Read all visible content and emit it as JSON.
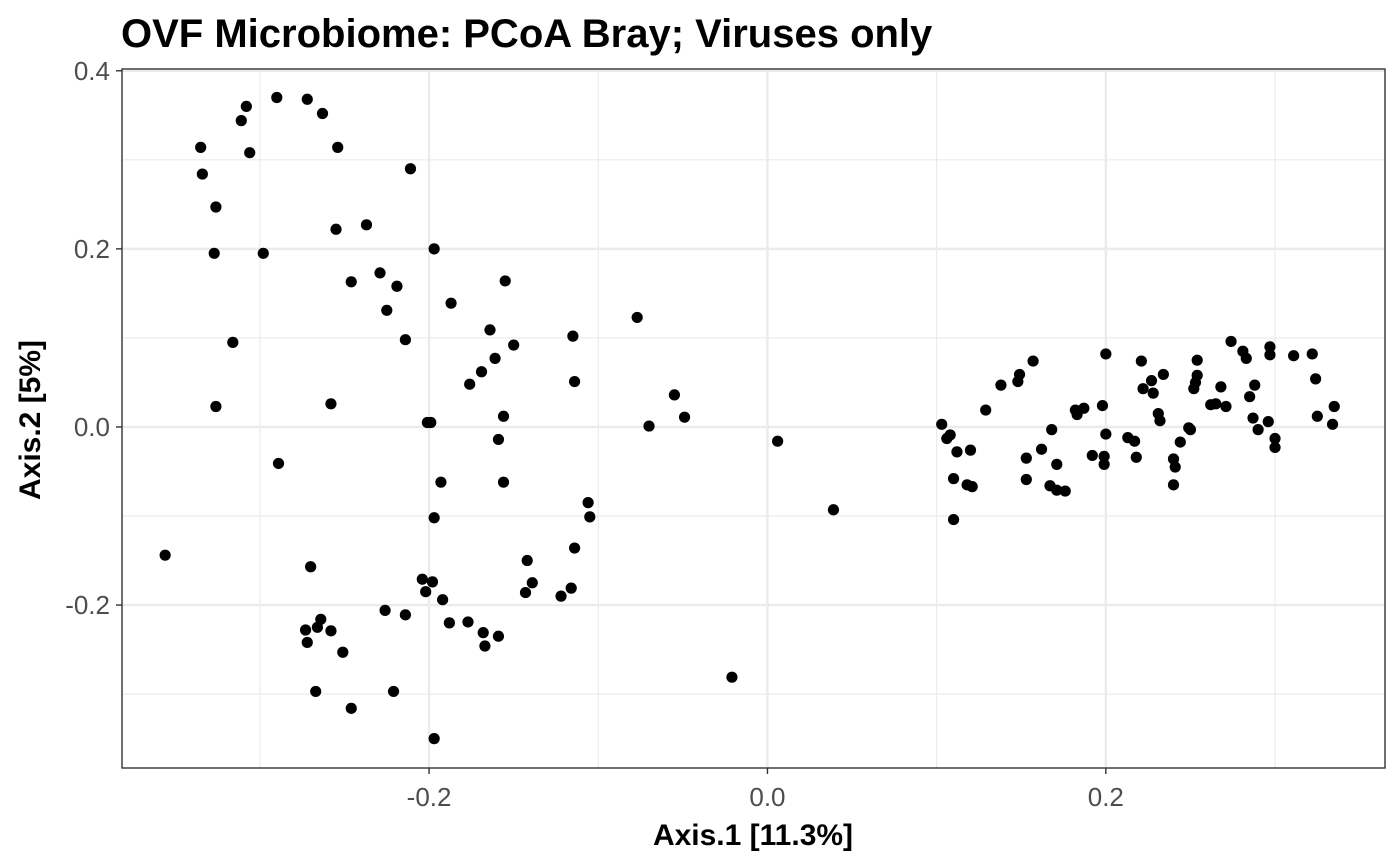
{
  "chart_data": {
    "type": "scatter",
    "title": "OVF Microbiome: PCoA Bray; Viruses only",
    "xlabel": "Axis.1   [11.3%]",
    "ylabel": "Axis.2   [5%]",
    "xlim": [
      -0.3815,
      0.365
    ],
    "ylim": [
      -0.383,
      0.402
    ],
    "xticks": [
      -0.2,
      0.0,
      0.2
    ],
    "xtick_labels": [
      "-0.2",
      "0.0",
      "0.2"
    ],
    "yticks": [
      -0.2,
      0.0,
      0.2,
      0.4
    ],
    "ytick_labels": [
      "-0.2",
      "0.0",
      "0.2",
      "0.4"
    ],
    "x_minor_grid": [
      -0.3,
      -0.1,
      0.1,
      0.3
    ],
    "y_minor_grid": [
      -0.3,
      -0.1,
      0.1,
      0.3
    ],
    "grid": true,
    "point_color": "#000000",
    "gridline_color": "#ebebeb",
    "series": [
      {
        "points": [
          [
            -0.29,
            0.37
          ],
          [
            -0.272,
            0.368
          ],
          [
            -0.263,
            0.352
          ],
          [
            -0.308,
            0.36
          ],
          [
            -0.311,
            0.344
          ],
          [
            -0.335,
            0.314
          ],
          [
            -0.306,
            0.308
          ],
          [
            -0.254,
            0.314
          ],
          [
            -0.334,
            0.284
          ],
          [
            -0.326,
            0.247
          ],
          [
            -0.211,
            0.29
          ],
          [
            -0.237,
            0.227
          ],
          [
            -0.255,
            0.222
          ],
          [
            -0.298,
            0.195
          ],
          [
            -0.327,
            0.195
          ],
          [
            -0.197,
            0.2
          ],
          [
            -0.229,
            0.173
          ],
          [
            -0.246,
            0.163
          ],
          [
            -0.219,
            0.158
          ],
          [
            -0.155,
            0.164
          ],
          [
            -0.187,
            0.139
          ],
          [
            -0.225,
            0.131
          ],
          [
            -0.214,
            0.098
          ],
          [
            -0.316,
            0.095
          ],
          [
            -0.164,
            0.109
          ],
          [
            -0.115,
            0.102
          ],
          [
            -0.15,
            0.092
          ],
          [
            -0.077,
            0.123
          ],
          [
            -0.161,
            0.077
          ],
          [
            -0.169,
            0.062
          ],
          [
            -0.176,
            0.048
          ],
          [
            -0.114,
            0.051
          ],
          [
            -0.326,
            0.023
          ],
          [
            -0.258,
            0.026
          ],
          [
            -0.055,
            0.036
          ],
          [
            -0.156,
            0.012
          ],
          [
            -0.049,
            0.011
          ],
          [
            -0.201,
            0.005
          ],
          [
            -0.199,
            0.005
          ],
          [
            -0.07,
            0.001
          ],
          [
            -0.159,
            -0.014
          ],
          [
            0.006,
            -0.016
          ],
          [
            -0.289,
            -0.041
          ],
          [
            -0.193,
            -0.062
          ],
          [
            -0.156,
            -0.062
          ],
          [
            -0.106,
            -0.085
          ],
          [
            -0.105,
            -0.101
          ],
          [
            -0.197,
            -0.102
          ],
          [
            0.039,
            -0.093
          ],
          [
            -0.114,
            -0.136
          ],
          [
            -0.356,
            -0.144
          ],
          [
            -0.142,
            -0.15
          ],
          [
            -0.27,
            -0.157
          ],
          [
            -0.204,
            -0.171
          ],
          [
            -0.198,
            -0.174
          ],
          [
            -0.139,
            -0.175
          ],
          [
            -0.116,
            -0.181
          ],
          [
            -0.202,
            -0.185
          ],
          [
            -0.143,
            -0.186
          ],
          [
            -0.122,
            -0.19
          ],
          [
            -0.192,
            -0.194
          ],
          [
            -0.226,
            -0.206
          ],
          [
            -0.214,
            -0.211
          ],
          [
            -0.188,
            -0.22
          ],
          [
            -0.177,
            -0.219
          ],
          [
            -0.264,
            -0.216
          ],
          [
            -0.168,
            -0.231
          ],
          [
            -0.159,
            -0.235
          ],
          [
            -0.266,
            -0.225
          ],
          [
            -0.258,
            -0.229
          ],
          [
            -0.273,
            -0.228
          ],
          [
            -0.272,
            -0.242
          ],
          [
            -0.167,
            -0.246
          ],
          [
            -0.251,
            -0.253
          ],
          [
            -0.021,
            -0.281
          ],
          [
            -0.267,
            -0.297
          ],
          [
            -0.221,
            -0.297
          ],
          [
            -0.246,
            -0.316
          ],
          [
            -0.197,
            -0.35
          ],
          [
            0.103,
            0.003
          ],
          [
            0.108,
            -0.009
          ],
          [
            0.106,
            -0.013
          ],
          [
            0.112,
            -0.028
          ],
          [
            0.12,
            -0.026
          ],
          [
            0.11,
            -0.058
          ],
          [
            0.118,
            -0.065
          ],
          [
            0.121,
            -0.067
          ],
          [
            0.11,
            -0.104
          ],
          [
            0.129,
            0.019
          ],
          [
            0.138,
            0.047
          ],
          [
            0.148,
            0.051
          ],
          [
            0.149,
            0.059
          ],
          [
            0.157,
            0.074
          ],
          [
            0.153,
            -0.035
          ],
          [
            0.153,
            -0.059
          ],
          [
            0.162,
            -0.025
          ],
          [
            0.168,
            -0.003
          ],
          [
            0.171,
            -0.042
          ],
          [
            0.167,
            -0.066
          ],
          [
            0.171,
            -0.071
          ],
          [
            0.176,
            -0.072
          ],
          [
            0.182,
            0.019
          ],
          [
            0.183,
            0.014
          ],
          [
            0.187,
            0.021
          ],
          [
            0.192,
            -0.032
          ],
          [
            0.198,
            0.024
          ],
          [
            0.2,
            -0.008
          ],
          [
            0.199,
            -0.033
          ],
          [
            0.199,
            -0.042
          ],
          [
            0.2,
            0.082
          ],
          [
            0.213,
            -0.012
          ],
          [
            0.217,
            -0.016
          ],
          [
            0.218,
            -0.034
          ],
          [
            0.221,
            0.074
          ],
          [
            0.222,
            0.043
          ],
          [
            0.227,
            0.052
          ],
          [
            0.228,
            0.038
          ],
          [
            0.231,
            0.015
          ],
          [
            0.232,
            0.007
          ],
          [
            0.234,
            0.059
          ],
          [
            0.24,
            -0.036
          ],
          [
            0.24,
            -0.065
          ],
          [
            0.241,
            -0.045
          ],
          [
            0.244,
            -0.017
          ],
          [
            0.249,
            -0.001
          ],
          [
            0.25,
            -0.003
          ],
          [
            0.252,
            0.043
          ],
          [
            0.253,
            0.05
          ],
          [
            0.254,
            0.058
          ],
          [
            0.254,
            0.075
          ],
          [
            0.262,
            0.025
          ],
          [
            0.265,
            0.026
          ],
          [
            0.268,
            0.045
          ],
          [
            0.271,
            0.023
          ],
          [
            0.274,
            0.096
          ],
          [
            0.281,
            0.085
          ],
          [
            0.283,
            0.077
          ],
          [
            0.285,
            0.034
          ],
          [
            0.287,
            0.01
          ],
          [
            0.288,
            0.047
          ],
          [
            0.29,
            -0.003
          ],
          [
            0.296,
            0.006
          ],
          [
            0.297,
            0.09
          ],
          [
            0.297,
            0.081
          ],
          [
            0.3,
            -0.013
          ],
          [
            0.3,
            -0.023
          ],
          [
            0.311,
            0.08
          ],
          [
            0.322,
            0.082
          ],
          [
            0.324,
            0.054
          ],
          [
            0.325,
            0.012
          ],
          [
            0.334,
            0.003
          ],
          [
            0.335,
            0.023
          ]
        ]
      }
    ]
  }
}
